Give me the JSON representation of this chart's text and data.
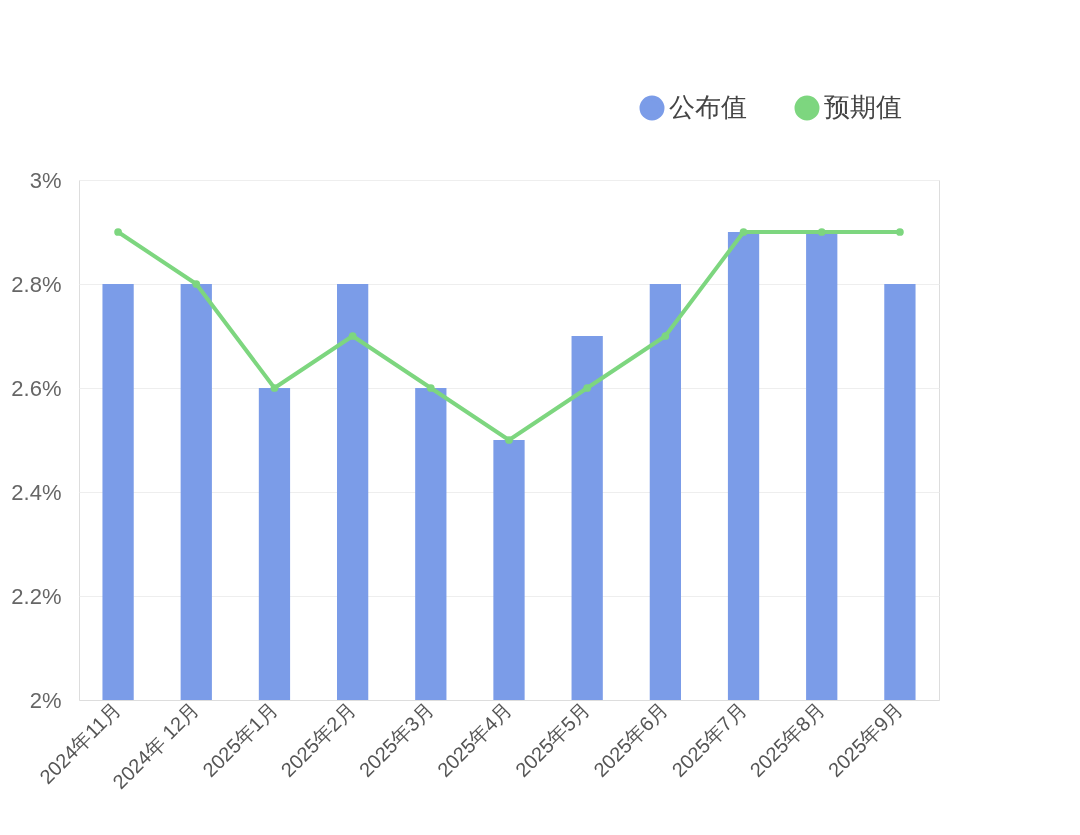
{
  "chart_data": {
    "type": "bar",
    "categories": [
      "2024年11月",
      "2024年 12月",
      "2025年1月",
      "2025年2月",
      "2025年3月",
      "2025年4月",
      "2025年5月",
      "2025年6月",
      "2025年7月",
      "2025年8月",
      "2025年9月"
    ],
    "series": [
      {
        "name": "公布值",
        "color": "#7b9ce8",
        "values": [
          2.8,
          2.8,
          2.6,
          2.8,
          2.6,
          2.5,
          2.7,
          2.8,
          2.9,
          2.9,
          2.8
        ]
      },
      {
        "name": "预期值",
        "type": "line",
        "color": "#7dd67f",
        "marker": "circle",
        "values": [
          2.9,
          2.8,
          2.6,
          2.7,
          2.6,
          2.5,
          2.6,
          2.7,
          2.9,
          2.9,
          2.9
        ]
      }
    ],
    "ylim": [
      2,
      3
    ],
    "yticks": [
      {
        "value": 2,
        "label": "2%"
      },
      {
        "value": 2.2,
        "label": "2.2%"
      },
      {
        "value": 2.4,
        "label": "2.4%"
      },
      {
        "value": 2.6,
        "label": "2.6%"
      },
      {
        "value": 2.8,
        "label": "2.8%"
      },
      {
        "value": 3,
        "label": "3%"
      }
    ],
    "grid": "y",
    "legend": "top right"
  }
}
